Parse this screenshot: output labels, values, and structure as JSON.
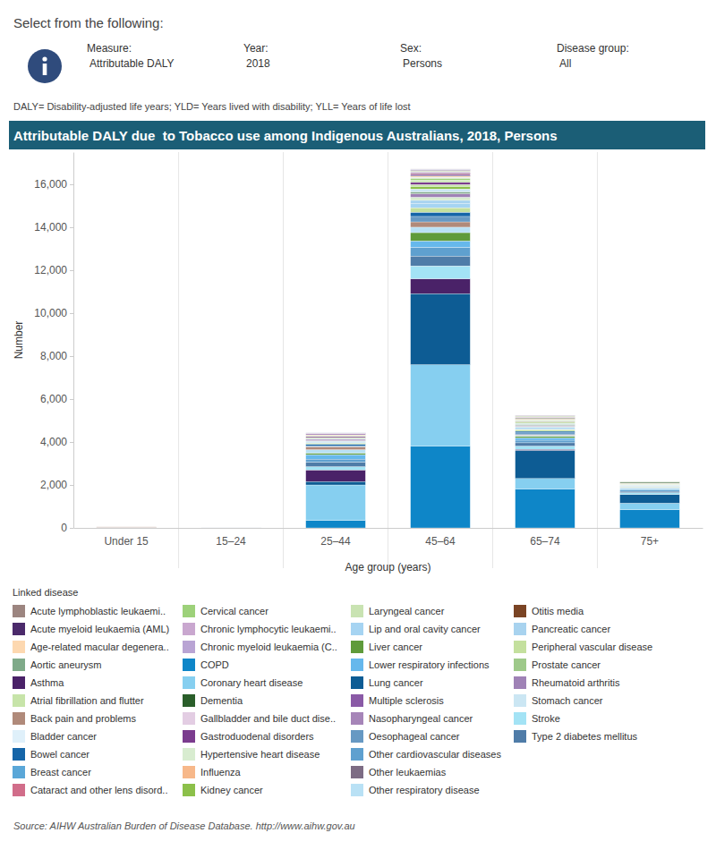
{
  "page": {
    "prompt": "Select from the following:",
    "controls": [
      {
        "label": "Measure:",
        "value": "Attributable DALY"
      },
      {
        "label": "Year:",
        "value": "2018"
      },
      {
        "label": "Sex:",
        "value": "Persons"
      },
      {
        "label": "Disease group:",
        "value": "All"
      }
    ],
    "definitions": "DALY= Disability-adjusted life years; YLD= Years lived with disability; YLL= Years of life lost",
    "source": "Source: AIHW Australian Burden of Disease Database. http://www.aihw.gov.au"
  },
  "chart_data": {
    "type": "bar",
    "stacked": true,
    "title": "Attributable DALY due  to Tobacco use among Indigenous Australians, 2018, Persons",
    "x_label": "Age group (years)",
    "y_label": "Number",
    "legend_title": "Linked disease",
    "legend": "bottom",
    "grid": false,
    "categories": [
      "Under 15",
      "15–24",
      "25–44",
      "45–64",
      "65–74",
      "75+"
    ],
    "ylim": [
      0,
      17500
    ],
    "yticks": [
      0,
      {
        "value": 2000,
        "label": "2,000"
      },
      {
        "value": 4000,
        "label": "4,000"
      },
      {
        "value": 6000,
        "label": "6,000"
      },
      {
        "value": 8000,
        "label": "8,000"
      },
      {
        "value": 10000,
        "label": "10,000"
      },
      {
        "value": 12000,
        "label": "12,000"
      },
      {
        "value": 14000,
        "label": "14,000"
      },
      {
        "value": 16000,
        "label": "16,000"
      }
    ],
    "series": [
      {
        "name": "Acute lymphoblastic leukaemi..",
        "color": "#9c8580",
        "values": [
          0,
          0,
          5,
          5,
          0,
          0
        ]
      },
      {
        "name": "Acute myeloid leukaemia (AML)",
        "color": "#4b2a6b",
        "values": [
          0,
          0,
          10,
          40,
          15,
          5
        ]
      },
      {
        "name": "Age-related macular degenera..",
        "color": "#fdd8b0",
        "values": [
          0,
          0,
          0,
          20,
          20,
          15
        ]
      },
      {
        "name": "Aortic aneurysm",
        "color": "#7faa89",
        "values": [
          0,
          0,
          20,
          100,
          60,
          20
        ]
      },
      {
        "name": "Asthma",
        "color": "#4a2268",
        "values": [
          5,
          5,
          550,
          700,
          60,
          10
        ]
      },
      {
        "name": "Atrial fibrillation and flutter",
        "color": "#c7e4a9",
        "values": [
          0,
          0,
          20,
          100,
          50,
          20
        ]
      },
      {
        "name": "Back pain and problems",
        "color": "#b08a7a",
        "values": [
          0,
          0,
          150,
          250,
          40,
          5
        ]
      },
      {
        "name": "Bladder cancer",
        "color": "#dff0fa",
        "values": [
          0,
          0,
          10,
          60,
          40,
          20
        ]
      },
      {
        "name": "Bowel cancer",
        "color": "#1565a8",
        "values": [
          0,
          0,
          80,
          200,
          80,
          20
        ]
      },
      {
        "name": "Breast cancer",
        "color": "#5aa7d8",
        "values": [
          0,
          0,
          10,
          20,
          5,
          0
        ]
      },
      {
        "name": "Cataract and other lens disord..",
        "color": "#d16d8a",
        "values": [
          0,
          0,
          5,
          40,
          20,
          10
        ]
      },
      {
        "name": "Cervical cancer",
        "color": "#9dd17a",
        "values": [
          0,
          0,
          40,
          80,
          10,
          0
        ]
      },
      {
        "name": "Chronic lymphocytic leukaemi..",
        "color": "#c9a7cf",
        "values": [
          0,
          0,
          2,
          10,
          5,
          3
        ]
      },
      {
        "name": "Chronic myeloid leukaemia (C..",
        "color": "#b9a4d4",
        "values": [
          0,
          0,
          3,
          10,
          5,
          2
        ]
      },
      {
        "name": "COPD",
        "color": "#0e86c8",
        "values": [
          0,
          0,
          350,
          3800,
          1800,
          850
        ]
      },
      {
        "name": "Coronary heart disease",
        "color": "#86cff0",
        "values": [
          0,
          0,
          1650,
          3800,
          500,
          300
        ]
      },
      {
        "name": "Dementia",
        "color": "#2a5e2a",
        "values": [
          0,
          0,
          0,
          30,
          40,
          40
        ]
      },
      {
        "name": "Gallbladder and bile duct dise..",
        "color": "#e3cde3",
        "values": [
          0,
          0,
          10,
          40,
          15,
          0
        ]
      },
      {
        "name": "Gastroduodenal disorders",
        "color": "#7b3c8e",
        "values": [
          0,
          0,
          50,
          100,
          20,
          5
        ]
      },
      {
        "name": "Hypertensive heart disease",
        "color": "#d8ecd0",
        "values": [
          0,
          0,
          40,
          150,
          50,
          15
        ]
      },
      {
        "name": "Influenza",
        "color": "#f7b88a",
        "values": [
          20,
          2,
          20,
          40,
          20,
          10
        ]
      },
      {
        "name": "Kidney cancer",
        "color": "#8cc04a",
        "values": [
          0,
          0,
          20,
          120,
          40,
          10
        ]
      },
      {
        "name": "Laryngeal cancer",
        "color": "#c9e3b2",
        "values": [
          0,
          0,
          15,
          100,
          30,
          10
        ]
      },
      {
        "name": "Lip and oral cavity cancer",
        "color": "#a6d4f2",
        "values": [
          0,
          0,
          50,
          200,
          40,
          10
        ]
      },
      {
        "name": "Liver cancer",
        "color": "#5f9b3a",
        "values": [
          0,
          0,
          80,
          400,
          80,
          15
        ]
      },
      {
        "name": "Lower respiratory infections",
        "color": "#66b8ec",
        "values": [
          10,
          3,
          200,
          300,
          100,
          60
        ]
      },
      {
        "name": "Lung cancer",
        "color": "#0d5c94",
        "values": [
          0,
          0,
          150,
          3300,
          1300,
          400
        ]
      },
      {
        "name": "Multiple sclerosis",
        "color": "#8a5aa6",
        "values": [
          0,
          0,
          40,
          60,
          5,
          0
        ]
      },
      {
        "name": "Nasopharyngeal cancer",
        "color": "#a685b8",
        "values": [
          0,
          0,
          10,
          30,
          10,
          0
        ]
      },
      {
        "name": "Oesophageal cancer",
        "color": "#6799c3",
        "values": [
          0,
          0,
          40,
          250,
          80,
          20
        ]
      },
      {
        "name": "Other cardiovascular diseases",
        "color": "#5fa0cf",
        "values": [
          0,
          0,
          150,
          400,
          120,
          60
        ]
      },
      {
        "name": "Other leukaemias",
        "color": "#7d6c84",
        "values": [
          0,
          0,
          5,
          20,
          10,
          5
        ]
      },
      {
        "name": "Other respiratory disease",
        "color": "#b9e1f5",
        "values": [
          0,
          0,
          150,
          250,
          40,
          20
        ]
      },
      {
        "name": "Otitis media",
        "color": "#7a4424",
        "values": [
          10,
          0,
          0,
          0,
          0,
          0
        ]
      },
      {
        "name": "Pancreatic cancer",
        "color": "#a8d3ef",
        "values": [
          0,
          0,
          30,
          150,
          70,
          20
        ]
      },
      {
        "name": "Peripheral vascular disease",
        "color": "#c4e09e",
        "values": [
          0,
          0,
          40,
          200,
          70,
          15
        ]
      },
      {
        "name": "Prostate cancer",
        "color": "#9ec98a",
        "values": [
          0,
          0,
          0,
          20,
          20,
          10
        ]
      },
      {
        "name": "Rheumatoid arthritis",
        "color": "#9f82b6",
        "values": [
          0,
          0,
          60,
          150,
          30,
          5
        ]
      },
      {
        "name": "Stomach cancer",
        "color": "#cbe6f3",
        "values": [
          0,
          0,
          20,
          120,
          40,
          15
        ]
      },
      {
        "name": "Stroke",
        "color": "#a3e3f5",
        "values": [
          0,
          0,
          150,
          600,
          150,
          80
        ]
      },
      {
        "name": "Type 2 diabetes mellitus",
        "color": "#4f7ca8",
        "values": [
          0,
          0,
          200,
          450,
          150,
          60
        ]
      }
    ]
  }
}
